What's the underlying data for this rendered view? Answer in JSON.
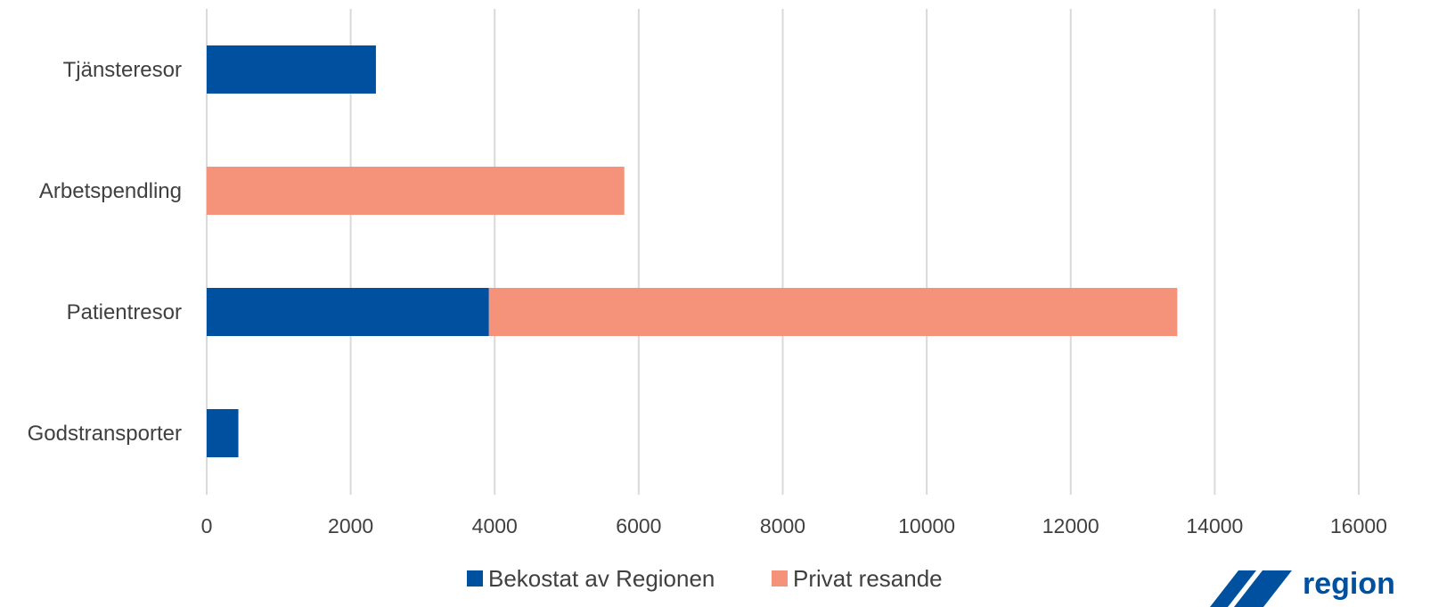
{
  "chart_data": {
    "type": "bar",
    "orientation": "horizontal",
    "stacked": true,
    "categories": [
      "Tjänsteresor",
      "Arbetspendling",
      "Patientresor",
      "Godstransporter"
    ],
    "series": [
      {
        "name": "Bekostat av Regionen",
        "color": "#0050a0",
        "values": [
          2350,
          0,
          3920,
          440
        ]
      },
      {
        "name": "Privat resande",
        "color": "#f4927a",
        "values": [
          0,
          5800,
          9560,
          0
        ]
      }
    ],
    "xlim": [
      0,
      16000
    ],
    "xticks": [
      "0",
      "2000",
      "4000",
      "6000",
      "8000",
      "10000",
      "12000",
      "14000",
      "16000"
    ],
    "grid": true,
    "legend_position": "bottom"
  },
  "logo": {
    "text": "region",
    "color": "#0050a0"
  }
}
